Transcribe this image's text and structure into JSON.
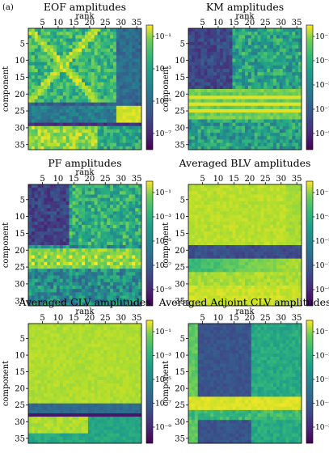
{
  "figure": {
    "panel_label": "(a)"
  },
  "chart_data": [
    {
      "type": "heatmap",
      "title": "EOF amplitudes",
      "xlabel": "rank",
      "ylabel": "component",
      "x_ticks": [
        "5",
        "10",
        "15",
        "20",
        "25",
        "30",
        "35"
      ],
      "y_ticks": [
        "5",
        "10",
        "15",
        "20",
        "25",
        "30",
        "35"
      ],
      "colorbar_scale": "log",
      "colorbar_ticks": [
        "10⁻¹",
        "10⁻³",
        "10⁻⁵",
        "10⁻⁷"
      ],
      "pattern": "eof"
    },
    {
      "type": "heatmap",
      "title": "KM amplitudes",
      "xlabel": "rank",
      "ylabel": "component",
      "x_ticks": [
        "5",
        "10",
        "15",
        "20",
        "25",
        "30",
        "35"
      ],
      "y_ticks": [
        "5",
        "10",
        "15",
        "20",
        "25",
        "30",
        "35"
      ],
      "colorbar_scale": "log",
      "colorbar_ticks": [
        "10⁻¹",
        "10⁻³",
        "10⁻⁵",
        "10⁻⁷",
        "10⁻⁹"
      ],
      "pattern": "km"
    },
    {
      "type": "heatmap",
      "title": "PF amplitudes",
      "xlabel": "rank",
      "ylabel": "component",
      "x_ticks": [
        "5",
        "10",
        "15",
        "20",
        "25",
        "30",
        "35"
      ],
      "y_ticks": [
        "5",
        "10",
        "15",
        "20",
        "25",
        "30",
        "35"
      ],
      "colorbar_scale": "log",
      "colorbar_ticks": [
        "10⁻¹",
        "10⁻³",
        "10⁻⁵",
        "10⁻⁷",
        "10⁻⁹"
      ],
      "pattern": "pf"
    },
    {
      "type": "heatmap",
      "title": "Averaged BLV amplitudes",
      "xlabel": "",
      "ylabel": "component",
      "x_ticks": [
        "5",
        "10",
        "15",
        "20",
        "25",
        "30",
        "35"
      ],
      "y_ticks": [
        "5",
        "10",
        "15",
        "20",
        "25",
        "30",
        "35"
      ],
      "colorbar_scale": "log",
      "colorbar_ticks": [
        "10⁻¹",
        "10⁻³",
        "10⁻⁵",
        "10⁻⁷",
        "10⁻⁹"
      ],
      "pattern": "blv"
    },
    {
      "type": "heatmap",
      "title": "Averaged CLV amplitudes",
      "xlabel": "rank",
      "ylabel": "component",
      "x_ticks": [
        "5",
        "10",
        "15",
        "20",
        "25",
        "30",
        "35"
      ],
      "y_ticks": [
        "5",
        "10",
        "15",
        "20",
        "25",
        "30",
        "35"
      ],
      "colorbar_scale": "log",
      "colorbar_ticks": [
        "10⁻¹",
        "10⁻³",
        "10⁻⁵",
        "10⁻⁷",
        "10⁻⁹"
      ],
      "pattern": "clv"
    },
    {
      "type": "heatmap",
      "title": "Averaged Adjoint CLV amplitudes",
      "xlabel": "rank",
      "ylabel": "component",
      "x_ticks": [
        "5",
        "10",
        "15",
        "20",
        "25",
        "30",
        "35"
      ],
      "y_ticks": [
        "5",
        "10",
        "15",
        "20",
        "25",
        "30",
        "35"
      ],
      "colorbar_scale": "log",
      "colorbar_ticks": [
        "10⁻¹",
        "10⁻²",
        "10⁻³",
        "10⁻⁴",
        "10⁻⁵"
      ],
      "pattern": "aclv"
    }
  ]
}
